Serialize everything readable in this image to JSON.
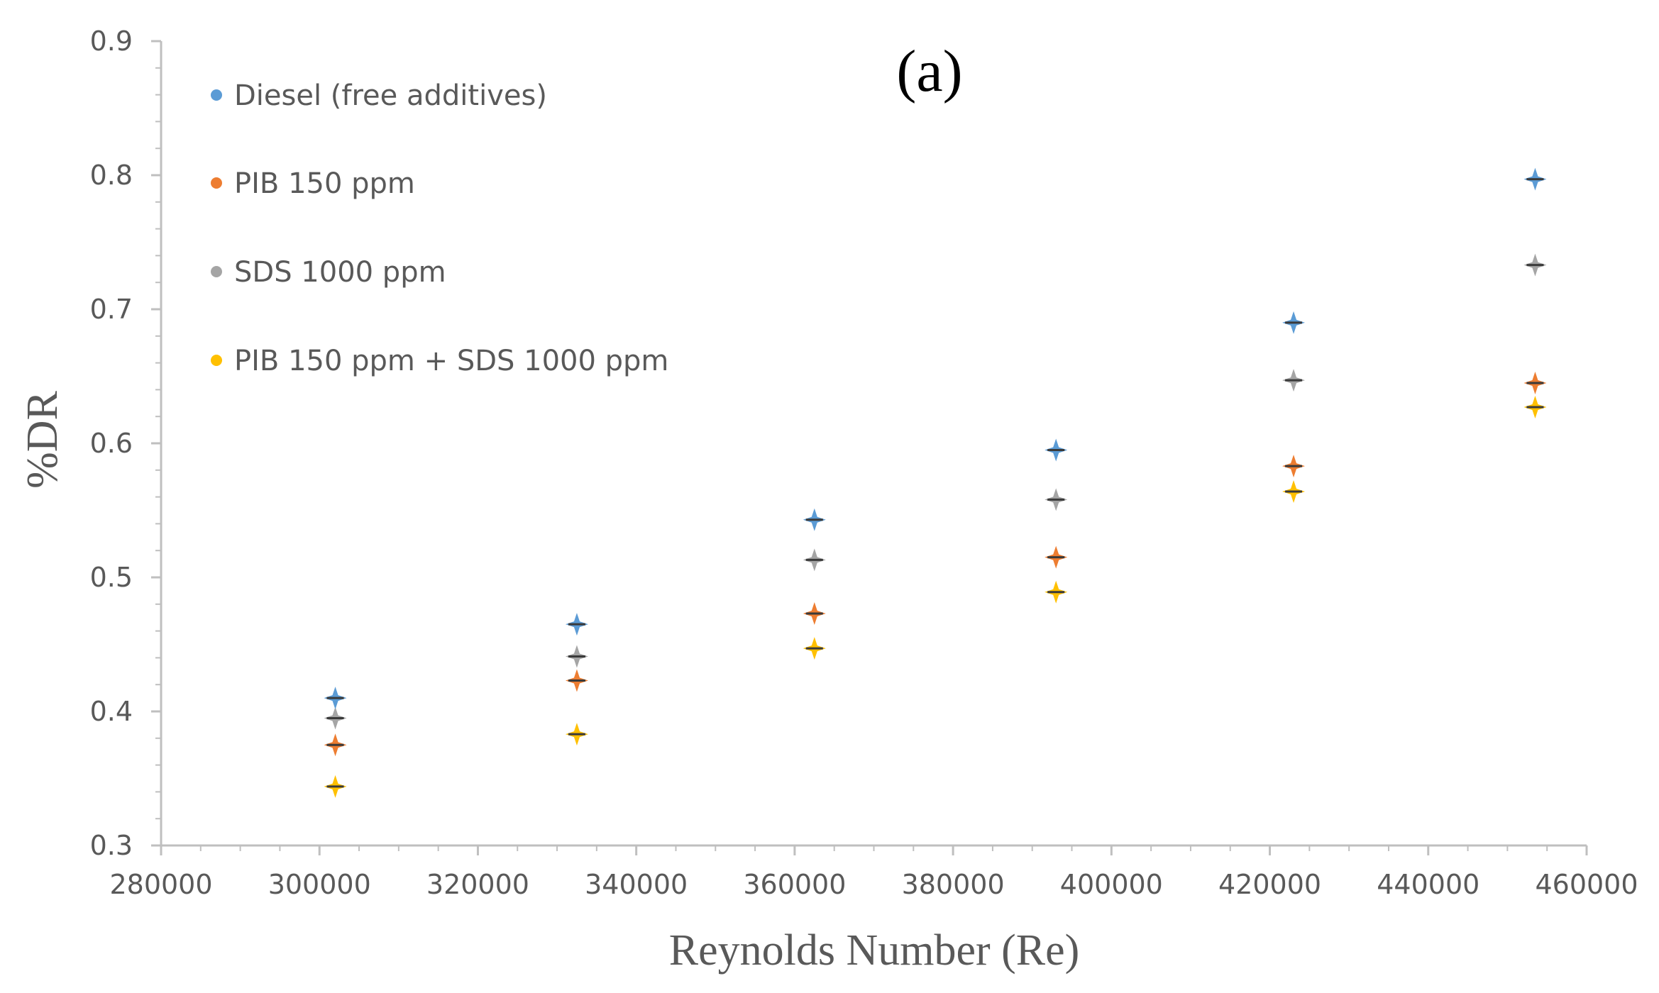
{
  "chart_data": {
    "type": "scatter",
    "panel_label": "(a)",
    "xlabel": "Reynolds  Number  (Re)",
    "ylabel": "%DR",
    "xlim": [
      280000,
      460000
    ],
    "ylim": [
      0.3,
      0.9
    ],
    "grid": false,
    "legend_position": "top-left",
    "x_ticks": [
      "280000",
      "300000",
      "320000",
      "340000",
      "360000",
      "380000",
      "400000",
      "420000",
      "440000",
      "460000"
    ],
    "y_ticks": [
      "0.3",
      "0.4",
      "0.5",
      "0.6",
      "0.7",
      "0.8",
      "0.9"
    ],
    "x": [
      302000,
      332500,
      362500,
      393000,
      423000,
      453500
    ],
    "series": [
      {
        "name": "Diesel (free additives)",
        "color": "#5B9BD5",
        "values": [
          0.41,
          0.465,
          0.543,
          0.595,
          0.69,
          0.797
        ]
      },
      {
        "name": "PIB 150 ppm",
        "color": "#ED7D31",
        "values": [
          0.375,
          0.423,
          0.473,
          0.515,
          0.583,
          0.645
        ]
      },
      {
        "name": "SDS 1000 ppm",
        "color": "#A5A5A5",
        "values": [
          0.395,
          0.441,
          0.513,
          0.558,
          0.647,
          0.733
        ]
      },
      {
        "name": "PIB 150 ppm + SDS 1000 ppm",
        "color": "#FFC000",
        "values": [
          0.344,
          0.383,
          0.447,
          0.489,
          0.564,
          0.627
        ]
      }
    ]
  }
}
